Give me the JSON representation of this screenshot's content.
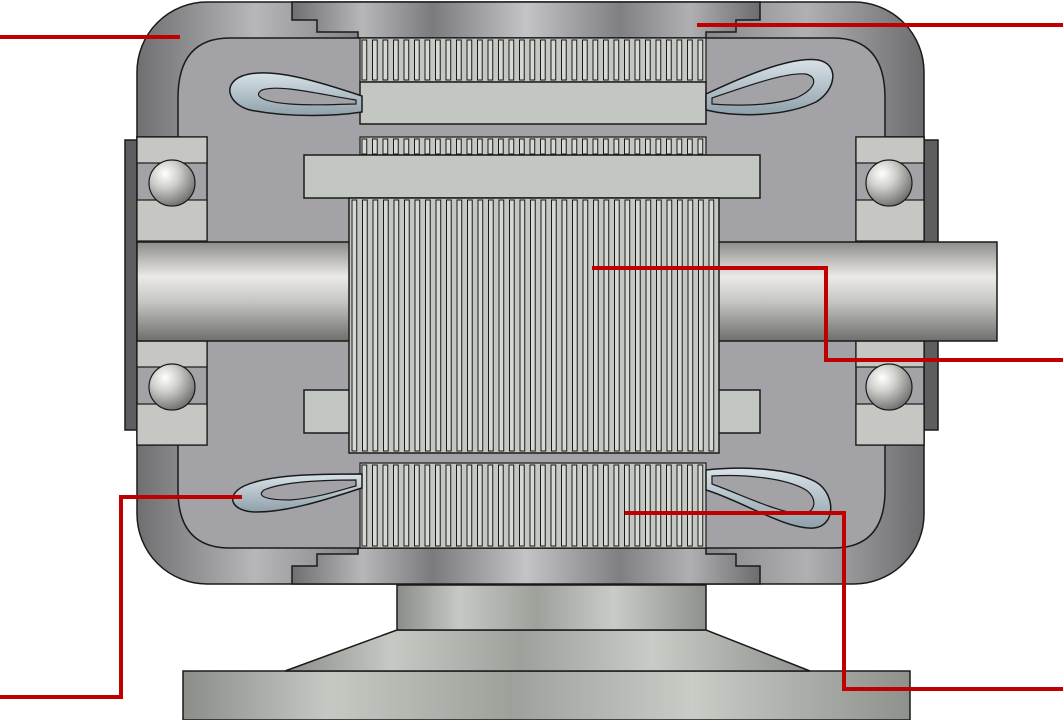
{
  "diagram": {
    "subject": "electric-motor-cross-section",
    "labels": [],
    "colors": {
      "housing": "#9a9a9c",
      "housing_dark": "#7d7d80",
      "cavity": "#a2a2a6",
      "stator": "#c2c6c0",
      "laminations": "#bcc0ba",
      "winding": "#b4c2ca",
      "shaft": "#c8cac6",
      "bearing": "#c8c8c4",
      "leader_line": "#c00000",
      "outline": "#1a1a1a"
    },
    "leaders": [
      {
        "id": "leader-housing"
      },
      {
        "id": "leader-end-cap"
      },
      {
        "id": "leader-rotor"
      },
      {
        "id": "leader-winding"
      },
      {
        "id": "leader-stator"
      }
    ]
  }
}
